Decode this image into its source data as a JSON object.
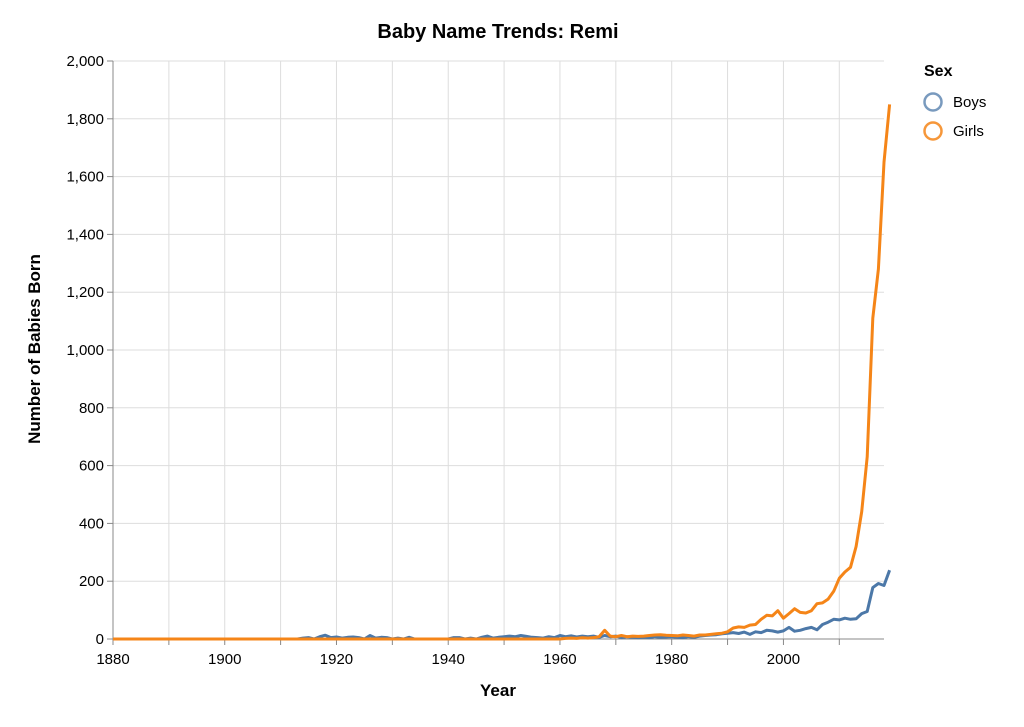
{
  "chart_data": {
    "type": "line",
    "title": "Baby Name Trends: Remi",
    "xlabel": "Year",
    "ylabel": "Number of Babies Born",
    "xlim": [
      1880,
      2018
    ],
    "ylim": [
      0,
      2000
    ],
    "x_ticks": [
      1880,
      1900,
      1920,
      1940,
      1960,
      1980,
      2000
    ],
    "y_ticks": [
      0,
      200,
      400,
      600,
      800,
      1000,
      1200,
      1400,
      1600,
      1800,
      2000
    ],
    "x_tick_labels": [
      "1880",
      "1900",
      "1920",
      "1940",
      "1960",
      "1980",
      "2000"
    ],
    "y_tick_labels": [
      "0",
      "200",
      "400",
      "600",
      "800",
      "1,000",
      "1,200",
      "1,400",
      "1,600",
      "1,800",
      "2,000"
    ],
    "grid": true,
    "legend": {
      "title": "Sex",
      "position": "top-right"
    },
    "series": [
      {
        "name": "Boys",
        "color": "#4c78a8",
        "points": [
          [
            1880,
            0
          ],
          [
            1900,
            0
          ],
          [
            1913,
            0
          ],
          [
            1914,
            3
          ],
          [
            1915,
            5
          ],
          [
            1916,
            0
          ],
          [
            1917,
            8
          ],
          [
            1918,
            13
          ],
          [
            1919,
            5
          ],
          [
            1920,
            7
          ],
          [
            1921,
            3
          ],
          [
            1922,
            6
          ],
          [
            1923,
            7
          ],
          [
            1924,
            5
          ],
          [
            1925,
            0
          ],
          [
            1926,
            12
          ],
          [
            1927,
            3
          ],
          [
            1928,
            6
          ],
          [
            1929,
            5
          ],
          [
            1930,
            0
          ],
          [
            1931,
            3
          ],
          [
            1932,
            0
          ],
          [
            1933,
            6
          ],
          [
            1934,
            0
          ],
          [
            1935,
            0
          ],
          [
            1938,
            0
          ],
          [
            1939,
            0
          ],
          [
            1940,
            0
          ],
          [
            1941,
            5
          ],
          [
            1942,
            5
          ],
          [
            1943,
            0
          ],
          [
            1944,
            3
          ],
          [
            1945,
            0
          ],
          [
            1946,
            6
          ],
          [
            1947,
            10
          ],
          [
            1948,
            3
          ],
          [
            1949,
            6
          ],
          [
            1950,
            8
          ],
          [
            1951,
            10
          ],
          [
            1952,
            8
          ],
          [
            1953,
            12
          ],
          [
            1954,
            9
          ],
          [
            1955,
            6
          ],
          [
            1956,
            5
          ],
          [
            1957,
            3
          ],
          [
            1958,
            8
          ],
          [
            1959,
            5
          ],
          [
            1960,
            12
          ],
          [
            1961,
            8
          ],
          [
            1962,
            11
          ],
          [
            1963,
            7
          ],
          [
            1964,
            10
          ],
          [
            1965,
            8
          ],
          [
            1966,
            10
          ],
          [
            1967,
            6
          ],
          [
            1968,
            12
          ],
          [
            1969,
            8
          ],
          [
            1970,
            10
          ],
          [
            1971,
            5
          ],
          [
            1972,
            8
          ],
          [
            1973,
            6
          ],
          [
            1974,
            5
          ],
          [
            1975,
            6
          ],
          [
            1976,
            5
          ],
          [
            1977,
            8
          ],
          [
            1978,
            6
          ],
          [
            1979,
            7
          ],
          [
            1980,
            8
          ],
          [
            1981,
            6
          ],
          [
            1982,
            5
          ],
          [
            1983,
            8
          ],
          [
            1984,
            6
          ],
          [
            1985,
            10
          ],
          [
            1986,
            12
          ],
          [
            1987,
            14
          ],
          [
            1988,
            15
          ],
          [
            1989,
            18
          ],
          [
            1990,
            20
          ],
          [
            1991,
            22
          ],
          [
            1992,
            19
          ],
          [
            1993,
            24
          ],
          [
            1994,
            16
          ],
          [
            1995,
            25
          ],
          [
            1996,
            22
          ],
          [
            1997,
            30
          ],
          [
            1998,
            28
          ],
          [
            1999,
            24
          ],
          [
            2000,
            28
          ],
          [
            2001,
            40
          ],
          [
            2002,
            27
          ],
          [
            2003,
            30
          ],
          [
            2004,
            36
          ],
          [
            2005,
            40
          ],
          [
            2006,
            32
          ],
          [
            2007,
            50
          ],
          [
            2008,
            58
          ],
          [
            2009,
            68
          ],
          [
            2010,
            66
          ],
          [
            2011,
            72
          ],
          [
            2012,
            68
          ],
          [
            2013,
            70
          ],
          [
            2014,
            88
          ],
          [
            2015,
            95
          ],
          [
            2016,
            178
          ],
          [
            2017,
            192
          ],
          [
            2018,
            185
          ],
          [
            2019,
            238
          ]
        ]
      },
      {
        "name": "Girls",
        "color": "#f58518",
        "points": [
          [
            1880,
            0
          ],
          [
            1900,
            0
          ],
          [
            1930,
            0
          ],
          [
            1950,
            0
          ],
          [
            1960,
            0
          ],
          [
            1961,
            2
          ],
          [
            1962,
            3
          ],
          [
            1963,
            2
          ],
          [
            1964,
            4
          ],
          [
            1965,
            3
          ],
          [
            1966,
            5
          ],
          [
            1967,
            8
          ],
          [
            1968,
            30
          ],
          [
            1969,
            10
          ],
          [
            1970,
            8
          ],
          [
            1971,
            12
          ],
          [
            1972,
            8
          ],
          [
            1973,
            10
          ],
          [
            1974,
            9
          ],
          [
            1975,
            10
          ],
          [
            1976,
            12
          ],
          [
            1977,
            14
          ],
          [
            1978,
            15
          ],
          [
            1979,
            13
          ],
          [
            1980,
            12
          ],
          [
            1981,
            11
          ],
          [
            1982,
            14
          ],
          [
            1983,
            12
          ],
          [
            1984,
            10
          ],
          [
            1985,
            14
          ],
          [
            1986,
            14
          ],
          [
            1987,
            16
          ],
          [
            1988,
            18
          ],
          [
            1989,
            20
          ],
          [
            1990,
            25
          ],
          [
            1991,
            38
          ],
          [
            1992,
            42
          ],
          [
            1993,
            40
          ],
          [
            1994,
            48
          ],
          [
            1995,
            50
          ],
          [
            1996,
            68
          ],
          [
            1997,
            82
          ],
          [
            1998,
            80
          ],
          [
            1999,
            98
          ],
          [
            2000,
            72
          ],
          [
            2001,
            88
          ],
          [
            2002,
            105
          ],
          [
            2003,
            92
          ],
          [
            2004,
            90
          ],
          [
            2005,
            98
          ],
          [
            2006,
            122
          ],
          [
            2007,
            125
          ],
          [
            2008,
            138
          ],
          [
            2009,
            165
          ],
          [
            2010,
            210
          ],
          [
            2011,
            232
          ],
          [
            2012,
            248
          ],
          [
            2013,
            320
          ],
          [
            2014,
            440
          ],
          [
            2015,
            630
          ],
          [
            2016,
            1110
          ],
          [
            2017,
            1280
          ],
          [
            2018,
            1650
          ],
          [
            2019,
            1850
          ]
        ]
      }
    ]
  }
}
